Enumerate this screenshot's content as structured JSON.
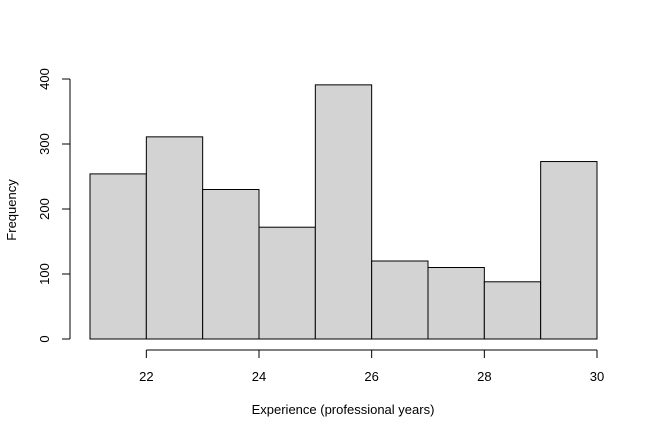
{
  "chart_data": {
    "type": "bar",
    "subtype": "histogram",
    "title": "",
    "xlabel": "Experience (professional years)",
    "ylabel": "Frequency",
    "bins": [
      {
        "start": 21,
        "end": 22,
        "value": 254
      },
      {
        "start": 22,
        "end": 23,
        "value": 311
      },
      {
        "start": 23,
        "end": 24,
        "value": 230
      },
      {
        "start": 24,
        "end": 25,
        "value": 172
      },
      {
        "start": 25,
        "end": 26,
        "value": 391
      },
      {
        "start": 26,
        "end": 27,
        "value": 120
      },
      {
        "start": 27,
        "end": 28,
        "value": 110
      },
      {
        "start": 28,
        "end": 29,
        "value": 88
      },
      {
        "start": 29,
        "end": 30,
        "value": 273
      }
    ],
    "x_ticks": [
      22,
      24,
      26,
      28,
      30
    ],
    "y_ticks": [
      0,
      100,
      200,
      300,
      400
    ],
    "xlim": [
      21,
      30
    ],
    "ylim": [
      0,
      400
    ],
    "grid": false,
    "legend": "none",
    "colors": {
      "bar_fill": "#d3d3d3",
      "bar_stroke": "#000000",
      "axis": "#000000"
    }
  }
}
